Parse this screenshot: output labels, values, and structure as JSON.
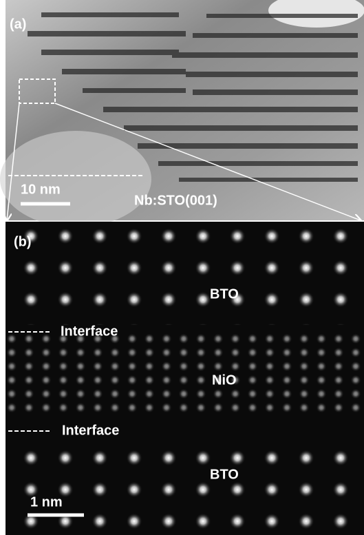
{
  "panel_a": {
    "label": "(a)",
    "scale_bar": "10 nm",
    "substrate": "Nb:STO(001)"
  },
  "panel_b": {
    "label": "(b)",
    "layers": [
      "BTO",
      "NiO",
      "BTO"
    ],
    "interfaces": [
      "Interface",
      "Interface"
    ],
    "scale_bar": "1 nm"
  }
}
